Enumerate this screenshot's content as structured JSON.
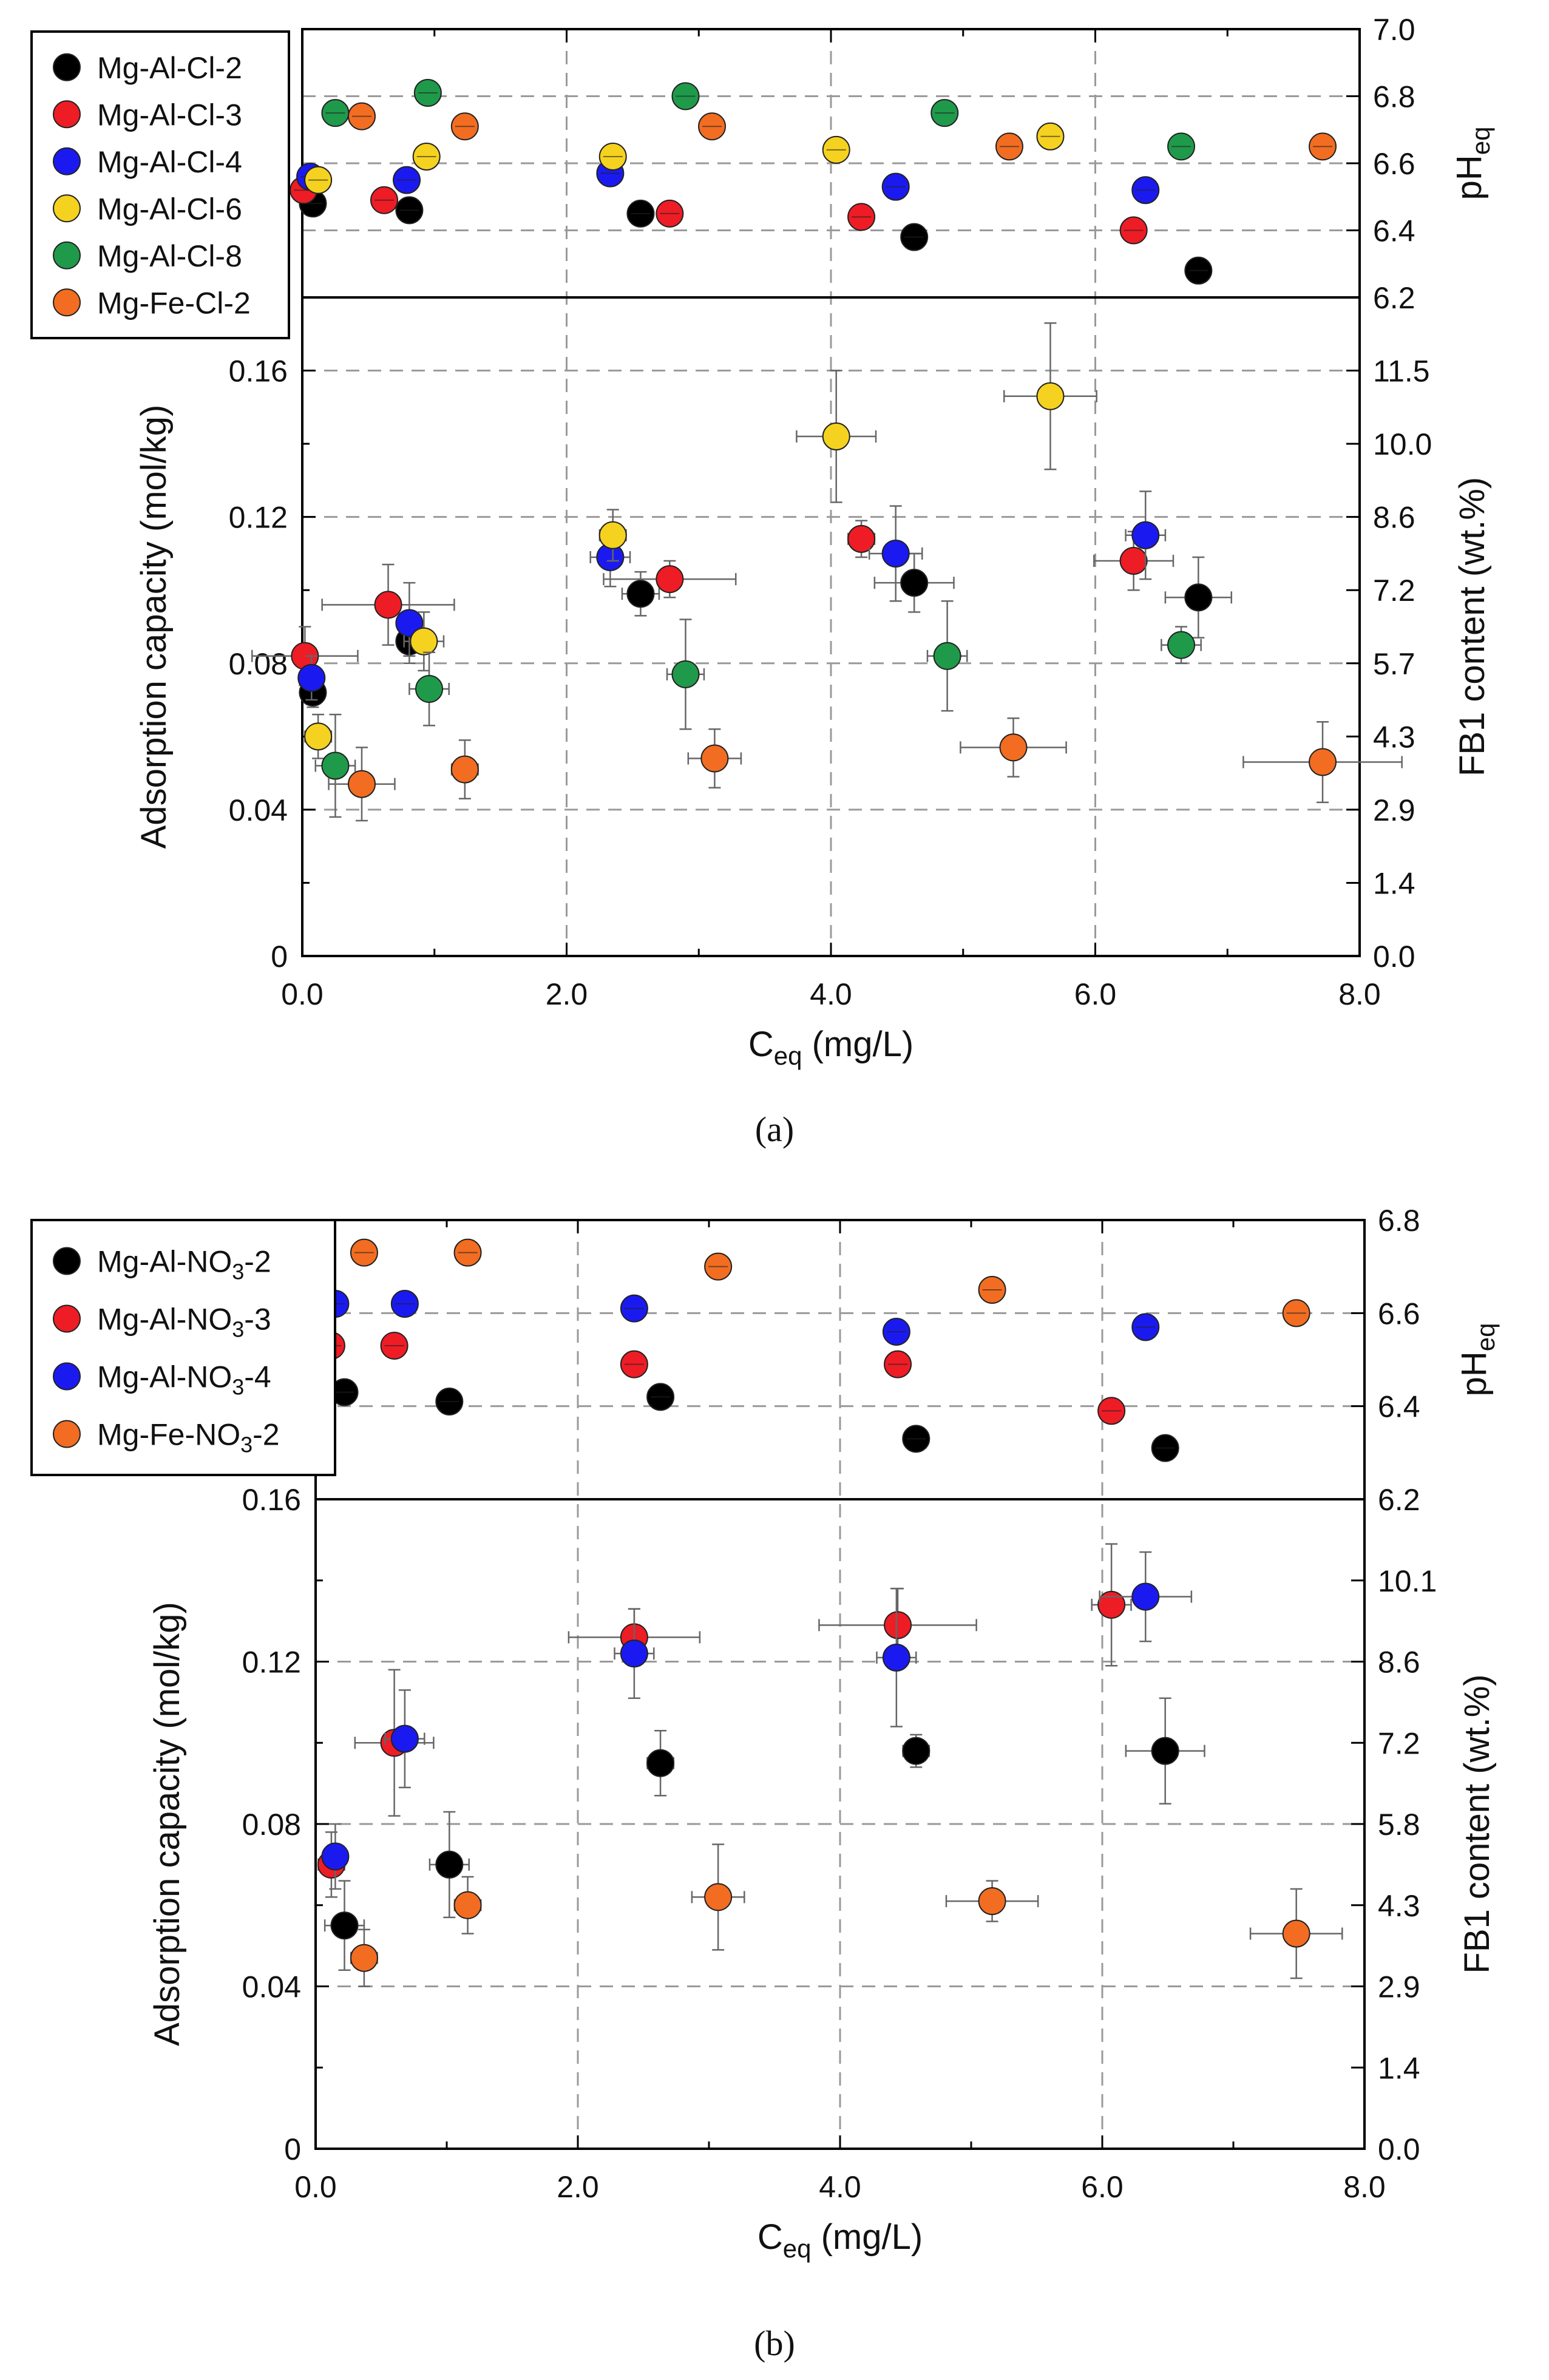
{
  "colors": {
    "black": "#000000",
    "red": "#ee1c25",
    "blue": "#1a1af0",
    "yellow": "#f5d21f",
    "green": "#1f9a4a",
    "orange": "#f26d21",
    "grid": "#9a9a9a",
    "error": "#666666"
  },
  "chart_data": [
    {
      "id": "a",
      "type": "scatter",
      "caption": "(a)",
      "xlabel_main": "C",
      "xlabel_sub": "eq",
      "xlabel_unit": " (mg/L)",
      "ylabel_left": "Adsorption capacity (mol/kg)",
      "ylabel_right": "FB1 content (wt.%)",
      "ylabel_top_main": "pH",
      "ylabel_top_sub": "eq",
      "xlim": [
        0,
        8
      ],
      "x_ticks": [
        "0.0",
        "2.0",
        "4.0",
        "6.0",
        "8.0"
      ],
      "ylim_left": [
        0,
        0.18
      ],
      "y_ticks_left": [
        "0",
        "0.04",
        "0.08",
        "0.12",
        "0.16"
      ],
      "y_ticks_right": [
        "0.0",
        "1.4",
        "2.9",
        "4.3",
        "5.7",
        "7.2",
        "8.6",
        "10.0",
        "11.5"
      ],
      "ph_ylim": [
        6.2,
        7.0
      ],
      "ph_ticks": [
        "6.2",
        "6.4",
        "6.6",
        "6.8",
        "7.0"
      ],
      "legend": {
        "position": "top-left"
      },
      "series": [
        {
          "name": "Mg-Al-Cl-2",
          "color": "black",
          "ph": [
            [
              0.08,
              6.48
            ],
            [
              0.81,
              6.46
            ],
            [
              2.56,
              6.45
            ],
            [
              4.63,
              6.38
            ],
            [
              6.78,
              6.28
            ]
          ],
          "points": [
            [
              0.08,
              0.072,
              0.02,
              0.004
            ],
            [
              0.81,
              0.086,
              0.08,
              0.004
            ],
            [
              2.56,
              0.099,
              0.14,
              0.006
            ],
            [
              4.63,
              0.102,
              0.3,
              0.008
            ],
            [
              6.78,
              0.098,
              0.25,
              0.011
            ]
          ]
        },
        {
          "name": "Mg-Al-Cl-3",
          "color": "red",
          "ph": [
            [
              0.01,
              6.52
            ],
            [
              0.62,
              6.49
            ],
            [
              2.78,
              6.45
            ],
            [
              4.23,
              6.44
            ],
            [
              6.29,
              6.4
            ]
          ],
          "points": [
            [
              0.02,
              0.082,
              0.4,
              0.008
            ],
            [
              0.65,
              0.096,
              0.5,
              0.011
            ],
            [
              2.78,
              0.103,
              0.5,
              0.005
            ],
            [
              4.23,
              0.114,
              0.1,
              0.005
            ],
            [
              6.29,
              0.108,
              0.3,
              0.008
            ]
          ]
        },
        {
          "name": "Mg-Al-Cl-4",
          "color": "blue",
          "ph": [
            [
              0.06,
              6.56
            ],
            [
              0.79,
              6.55
            ],
            [
              2.33,
              6.57
            ],
            [
              4.49,
              6.53
            ],
            [
              6.38,
              6.52
            ]
          ],
          "points": [
            [
              0.07,
              0.076,
              0.06,
              0.006
            ],
            [
              0.81,
              0.091,
              0.06,
              0.011
            ],
            [
              2.33,
              0.109,
              0.15,
              0.008
            ],
            [
              4.49,
              0.11,
              0.2,
              0.013
            ],
            [
              6.38,
              0.115,
              0.15,
              0.012
            ]
          ]
        },
        {
          "name": "Mg-Al-Cl-6",
          "color": "yellow",
          "ph": [
            [
              0.12,
              6.55
            ],
            [
              0.94,
              6.62
            ],
            [
              2.35,
              6.62
            ],
            [
              4.04,
              6.64
            ],
            [
              5.66,
              6.68
            ]
          ],
          "points": [
            [
              0.12,
              0.06,
              0.1,
              0.006
            ],
            [
              0.92,
              0.086,
              0.15,
              0.008
            ],
            [
              2.35,
              0.115,
              0.1,
              0.007
            ],
            [
              4.04,
              0.142,
              0.3,
              0.018
            ],
            [
              5.66,
              0.153,
              0.35,
              0.02
            ]
          ]
        },
        {
          "name": "Mg-Al-Cl-8",
          "color": "green",
          "ph": [
            [
              0.25,
              6.75
            ],
            [
              0.95,
              6.81
            ],
            [
              2.9,
              6.8
            ],
            [
              4.86,
              6.75
            ],
            [
              6.65,
              6.65
            ]
          ],
          "points": [
            [
              0.25,
              0.052,
              0.15,
              0.014
            ],
            [
              0.96,
              0.073,
              0.15,
              0.01
            ],
            [
              2.9,
              0.077,
              0.14,
              0.015
            ],
            [
              4.88,
              0.082,
              0.15,
              0.015
            ],
            [
              6.65,
              0.085,
              0.15,
              0.005
            ]
          ]
        },
        {
          "name": "Mg-Fe-Cl-2",
          "color": "orange",
          "ph": [
            [
              0.45,
              6.74
            ],
            [
              1.23,
              6.71
            ],
            [
              3.1,
              6.71
            ],
            [
              5.35,
              6.65
            ],
            [
              7.72,
              6.65
            ]
          ],
          "points": [
            [
              0.45,
              0.047,
              0.25,
              0.01
            ],
            [
              1.23,
              0.051,
              0.1,
              0.008
            ],
            [
              3.12,
              0.054,
              0.2,
              0.008
            ],
            [
              5.38,
              0.057,
              0.4,
              0.008
            ],
            [
              7.72,
              0.053,
              0.6,
              0.011
            ]
          ]
        }
      ]
    },
    {
      "id": "b",
      "type": "scatter",
      "caption": "(b)",
      "xlabel_main": "C",
      "xlabel_sub": "eq",
      "xlabel_unit": " (mg/L)",
      "ylabel_left": "Adsorption capacity (mol/kg)",
      "ylabel_right": "FB1 content (wt.%)",
      "ylabel_top_main": "pH",
      "ylabel_top_sub": "eq",
      "xlim": [
        0,
        8
      ],
      "x_ticks": [
        "0.0",
        "2.0",
        "4.0",
        "6.0",
        "8.0"
      ],
      "ylim_left": [
        0,
        0.16
      ],
      "y_ticks_left": [
        "0",
        "0.04",
        "0.08",
        "0.12",
        "0.16"
      ],
      "y_ticks_right": [
        "0.0",
        "1.4",
        "2.9",
        "4.3",
        "5.8",
        "7.2",
        "8.6",
        "10.1"
      ],
      "ph_ylim": [
        6.2,
        6.8
      ],
      "ph_ticks": [
        "6.2",
        "6.4",
        "6.6",
        "6.8"
      ],
      "legend": {
        "position": "top-left"
      },
      "series": [
        {
          "name_main": "Mg-Al-NO",
          "name_sub": "3",
          "name_tail": "-2",
          "color": "black",
          "ph": [
            [
              0.22,
              6.43
            ],
            [
              1.02,
              6.41
            ],
            [
              2.63,
              6.42
            ],
            [
              4.58,
              6.33
            ],
            [
              6.48,
              6.31
            ]
          ],
          "points": [
            [
              0.22,
              0.055,
              0.15,
              0.011
            ],
            [
              1.02,
              0.07,
              0.15,
              0.013
            ],
            [
              2.63,
              0.095,
              0.1,
              0.008
            ],
            [
              4.58,
              0.098,
              0.1,
              0.004
            ],
            [
              6.48,
              0.098,
              0.3,
              0.013
            ]
          ]
        },
        {
          "name_main": "Mg-Al-NO",
          "name_sub": "3",
          "name_tail": "-3",
          "color": "red",
          "ph": [
            [
              0.12,
              6.53
            ],
            [
              0.6,
              6.53
            ],
            [
              2.43,
              6.49
            ],
            [
              4.44,
              6.49
            ],
            [
              6.07,
              6.39
            ]
          ],
          "points": [
            [
              0.12,
              0.07,
              0.1,
              0.008
            ],
            [
              0.6,
              0.1,
              0.3,
              0.018
            ],
            [
              2.43,
              0.126,
              0.5,
              0.007
            ],
            [
              4.44,
              0.129,
              0.6,
              0.009
            ],
            [
              6.07,
              0.134,
              0.15,
              0.015
            ]
          ]
        },
        {
          "name_main": "Mg-Al-NO",
          "name_sub": "3",
          "name_tail": "-4",
          "color": "blue",
          "ph": [
            [
              0.15,
              6.62
            ],
            [
              0.68,
              6.62
            ],
            [
              2.43,
              6.61
            ],
            [
              4.43,
              6.56
            ],
            [
              6.33,
              6.57
            ]
          ],
          "points": [
            [
              0.15,
              0.072,
              0.08,
              0.008
            ],
            [
              0.68,
              0.101,
              0.15,
              0.012
            ],
            [
              2.43,
              0.122,
              0.15,
              0.011
            ],
            [
              4.43,
              0.121,
              0.15,
              0.017
            ],
            [
              6.33,
              0.136,
              0.35,
              0.011
            ]
          ]
        },
        {
          "name_main": "Mg-Fe-NO",
          "name_sub": "3",
          "name_tail": "-2",
          "color": "orange",
          "ph": [
            [
              0.37,
              6.73
            ],
            [
              1.16,
              6.73
            ],
            [
              3.07,
              6.7
            ],
            [
              5.16,
              6.65
            ],
            [
              7.48,
              6.6
            ]
          ],
          "points": [
            [
              0.37,
              0.047,
              0.1,
              0.007
            ],
            [
              1.16,
              0.06,
              0.1,
              0.007
            ],
            [
              3.07,
              0.062,
              0.2,
              0.013
            ],
            [
              5.16,
              0.061,
              0.35,
              0.005
            ],
            [
              7.48,
              0.053,
              0.35,
              0.011
            ]
          ]
        }
      ]
    }
  ]
}
